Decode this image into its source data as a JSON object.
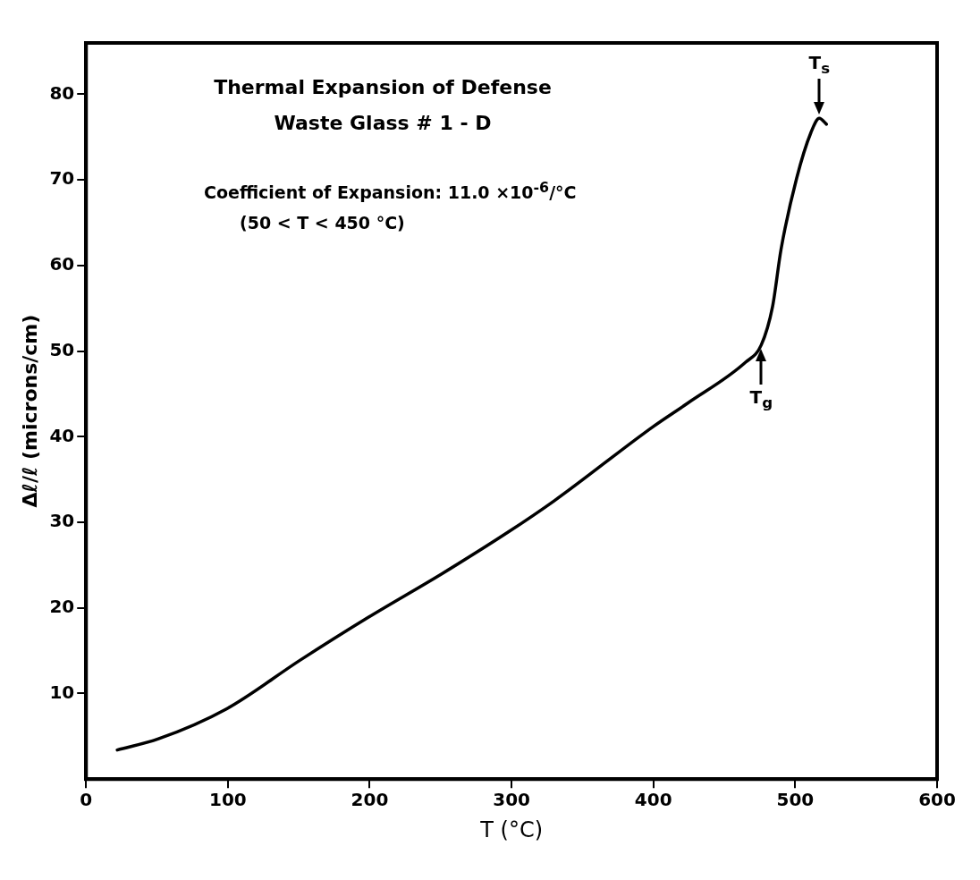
{
  "chart_data": {
    "type": "line",
    "title": "Thermal Expansion of Defense Waste Glass # 1 - D",
    "xlabel": "T (°C)",
    "ylabel": "Δℓ/ℓ (microns/cm)",
    "x": [
      22,
      51,
      99,
      151,
      199,
      251,
      298,
      330,
      400,
      424,
      465,
      476,
      484,
      490,
      501,
      511,
      517,
      522
    ],
    "series": [
      {
        "color": "#000000",
        "values": [
          3.4,
          4.7,
          8.2,
          13.9,
          18.9,
          24,
          28.9,
          32.5,
          41.2,
          43.9,
          48.7,
          50.7,
          55.2,
          61.9,
          70.2,
          75.5,
          77.2,
          76.5
        ]
      }
    ],
    "xlim": [
      0,
      600
    ],
    "xticks": [
      0,
      100,
      200,
      300,
      400,
      500,
      600
    ],
    "ylim": [
      0,
      86
    ],
    "yticks": [
      10,
      20,
      30,
      40,
      50,
      60,
      70,
      80
    ],
    "grid": false,
    "legend": false,
    "marker": "none",
    "line_style": "solid",
    "annotations": [
      "Coefficient of Expansion: 11.0 ×10$^{-6}$/°C",
      "(50 < T < 450 °C)",
      {
        "text": "T$_{g}$",
        "x": 476,
        "y": 50.7
      },
      {
        "text": "T$_{s}$",
        "x": 517,
        "y": 77.2
      }
    ]
  }
}
